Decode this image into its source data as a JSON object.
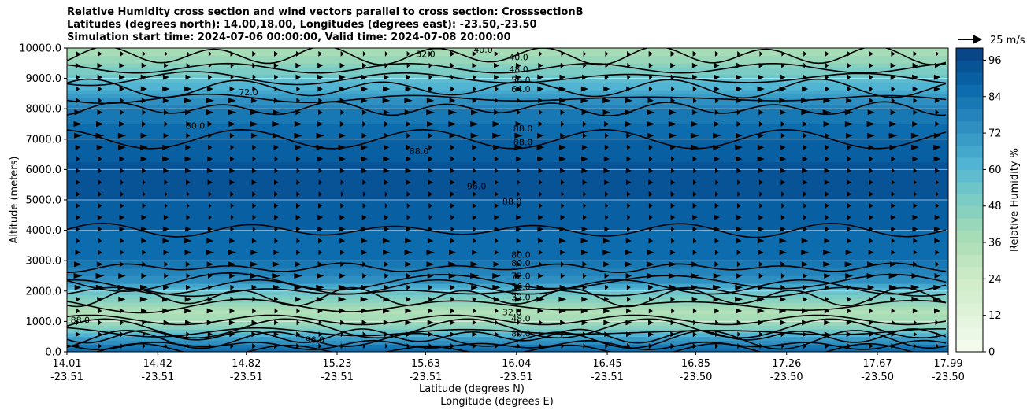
{
  "chart_data": {
    "type": "heatmap",
    "title_lines": [
      "Relative Humidity cross section and wind vectors parallel to cross section: CrosssectionB",
      "Latitudes (degrees north): 14.00,18.00, Longitudes (degrees east): -23.50,-23.50",
      "Simulation start time: 2024-07-06 00:00:00, Valid time: 2024-07-08 20:00:00"
    ],
    "ylabel": "Altitude (meters)",
    "xlabel_lat": "Latitude (degrees N)",
    "xlabel_lon": "Longitude (degrees E)",
    "ylim": [
      0,
      10000
    ],
    "yticks": [
      "0.0",
      "1000.0",
      "2000.0",
      "3000.0",
      "4000.0",
      "5000.0",
      "6000.0",
      "7000.0",
      "8000.0",
      "9000.0",
      "10000.0"
    ],
    "xticks_lat": [
      "14.01",
      "14.42",
      "14.82",
      "15.23",
      "15.63",
      "16.04",
      "16.45",
      "16.85",
      "17.26",
      "17.67",
      "17.99"
    ],
    "xticks_lon": [
      "-23.51",
      "-23.51",
      "-23.51",
      "-23.51",
      "-23.51",
      "-23.51",
      "-23.51",
      "-23.50",
      "-23.50",
      "-23.50",
      "-23.50"
    ],
    "colorbar": {
      "label": "Relative Humidity %",
      "range": [
        0,
        100
      ],
      "ticks": [
        "0",
        "12",
        "24",
        "36",
        "48",
        "60",
        "72",
        "84",
        "96"
      ],
      "colormap": "GnBu"
    },
    "quiver_key": "25 m/s",
    "rh_profile": [
      {
        "alt": 0,
        "rh": 90
      },
      {
        "alt": 400,
        "rh": 72
      },
      {
        "alt": 800,
        "rh": 46
      },
      {
        "alt": 1300,
        "rh": 34
      },
      {
        "alt": 1800,
        "rh": 48
      },
      {
        "alt": 2300,
        "rh": 72
      },
      {
        "alt": 3000,
        "rh": 84
      },
      {
        "alt": 4000,
        "rh": 88
      },
      {
        "alt": 5000,
        "rh": 92
      },
      {
        "alt": 6000,
        "rh": 93
      },
      {
        "alt": 7000,
        "rh": 88
      },
      {
        "alt": 8000,
        "rh": 80
      },
      {
        "alt": 8500,
        "rh": 68
      },
      {
        "alt": 9000,
        "rh": 56
      },
      {
        "alt": 9500,
        "rh": 44
      },
      {
        "alt": 10000,
        "rh": 36
      }
    ],
    "contour_labels": [
      {
        "text": "32.0",
        "lat": 15.63,
        "alt": 9700
      },
      {
        "text": "40.0",
        "lat": 15.89,
        "alt": 9850
      },
      {
        "text": "40.0",
        "lat": 16.05,
        "alt": 9600
      },
      {
        "text": "48.0",
        "lat": 16.05,
        "alt": 9200
      },
      {
        "text": "56.0",
        "lat": 16.06,
        "alt": 8850
      },
      {
        "text": "64.0",
        "lat": 16.06,
        "alt": 8550
      },
      {
        "text": "72.0",
        "lat": 14.83,
        "alt": 8450
      },
      {
        "text": "80.0",
        "lat": 14.59,
        "alt": 7350
      },
      {
        "text": "88.0",
        "lat": 16.07,
        "alt": 7250
      },
      {
        "text": "88.0",
        "lat": 15.6,
        "alt": 6500
      },
      {
        "text": "88.0",
        "lat": 16.07,
        "alt": 6800
      },
      {
        "text": "96.0",
        "lat": 15.86,
        "alt": 5350
      },
      {
        "text": "88.0",
        "lat": 16.02,
        "alt": 4850
      },
      {
        "text": "80.0",
        "lat": 16.06,
        "alt": 3090
      },
      {
        "text": "80.0",
        "lat": 16.06,
        "alt": 2830
      },
      {
        "text": "72.0",
        "lat": 16.06,
        "alt": 2400
      },
      {
        "text": "56.0",
        "lat": 16.06,
        "alt": 2050
      },
      {
        "text": "32.0",
        "lat": 16.06,
        "alt": 1700
      },
      {
        "text": "32.0",
        "lat": 16.02,
        "alt": 1200
      },
      {
        "text": "48.0",
        "lat": 16.06,
        "alt": 1000
      },
      {
        "text": "80.0",
        "lat": 16.06,
        "alt": 500
      },
      {
        "text": "88.0",
        "lat": 14.07,
        "alt": 950
      },
      {
        "text": "96.0",
        "lat": 15.13,
        "alt": 300
      }
    ]
  }
}
